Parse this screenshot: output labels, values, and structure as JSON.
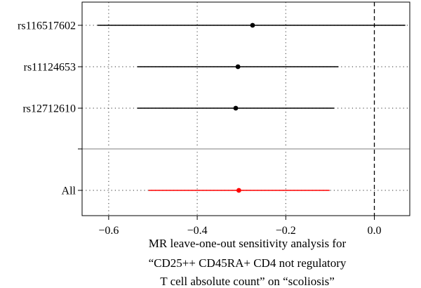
{
  "chart_data": {
    "type": "forest",
    "title": "",
    "xlabel_lines": [
      "MR leave-one-out sensitivity analysis for",
      "“CD25++ CD45RA+ CD4 not regulatory",
      "T cell absolute count” on “scoliosis”"
    ],
    "ylabel": "",
    "xlim": [
      -0.66,
      0.08
    ],
    "x_ticks": [
      -0.6,
      -0.4,
      -0.2,
      0.0
    ],
    "x_tick_labels": [
      "−0.6",
      "−0.4",
      "−0.2",
      "0.0"
    ],
    "reference_line": 0.0,
    "grid": "dotted",
    "rows": [
      {
        "label": "rs116517602",
        "estimate": -0.275,
        "lower": -0.625,
        "upper": 0.07,
        "color": "#000000"
      },
      {
        "label": "rs11124653",
        "estimate": -0.308,
        "lower": -0.535,
        "upper": -0.081,
        "color": "#000000"
      },
      {
        "label": "rs12712610",
        "estimate": -0.313,
        "lower": -0.535,
        "upper": -0.091,
        "color": "#000000"
      }
    ],
    "overall": {
      "label": "All",
      "estimate": -0.306,
      "lower": -0.51,
      "upper": -0.101,
      "color": "#ff0000"
    },
    "separator_color": "#bebebe"
  }
}
